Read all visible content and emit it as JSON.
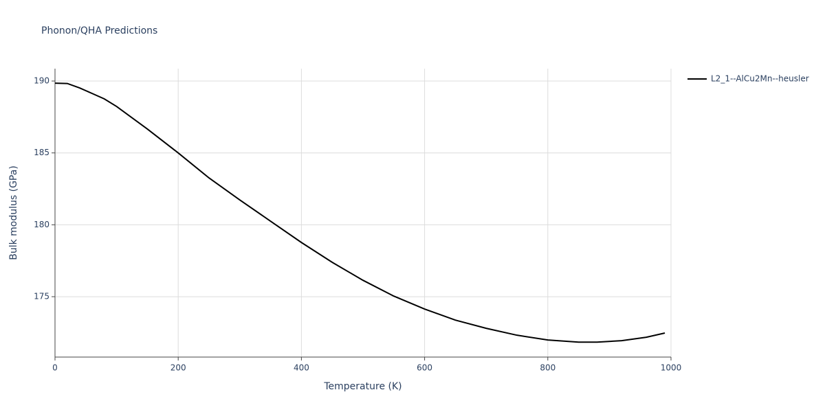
{
  "chart_data": {
    "type": "line",
    "title": "Phonon/QHA Predictions",
    "x_label": "Temperature (K)",
    "y_label": "Bulk modulus (GPa)",
    "xlim": [
      0,
      1000
    ],
    "ylim": [
      170.8,
      190.86
    ],
    "xticks": [
      0,
      200,
      400,
      600,
      800,
      1000
    ],
    "yticks": [
      175,
      180,
      185,
      190
    ],
    "grid": true,
    "legend": "right",
    "x": [
      0,
      20,
      40,
      60,
      80,
      100,
      150,
      200,
      250,
      300,
      350,
      400,
      450,
      500,
      550,
      600,
      650,
      700,
      750,
      800,
      850,
      880,
      920,
      960,
      990
    ],
    "series": [
      {
        "name": "L2_1--AlCu2Mn--heusler",
        "color": "#000000",
        "values": [
          189.85,
          189.83,
          189.52,
          189.14,
          188.76,
          188.23,
          186.66,
          185.0,
          183.26,
          181.73,
          180.25,
          178.77,
          177.39,
          176.14,
          175.04,
          174.14,
          173.37,
          172.8,
          172.32,
          171.99,
          171.84,
          171.84,
          171.94,
          172.18,
          172.47
        ]
      }
    ]
  }
}
